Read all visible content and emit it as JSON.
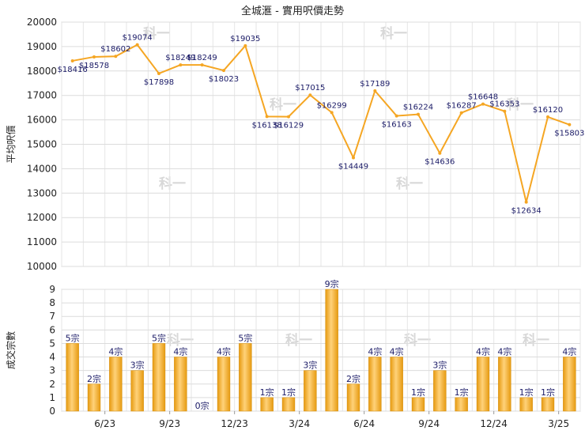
{
  "chart_data": [
    {
      "type": "line",
      "title": "全城滙 - 實用呎價走勢",
      "ylabel": "平均呎價",
      "ylim": [
        10000,
        20000
      ],
      "y_ticks": [
        "10000",
        "11000",
        "12000",
        "13000",
        "14000",
        "15000",
        "16000",
        "17000",
        "18000",
        "19000",
        "20000"
      ],
      "grid": true,
      "line_color": "#f5a623",
      "values": [
        18416,
        18578,
        18602,
        19074,
        17898,
        18249,
        18249,
        18023,
        19035,
        16138,
        16129,
        17015,
        16299,
        14449,
        17189,
        16163,
        16224,
        14636,
        16287,
        16648,
        16353,
        12634,
        16120,
        15803
      ],
      "point_labels": [
        "$18416",
        "$18578",
        "$18602",
        "$19074",
        "$17898",
        "$18249",
        "$18249",
        "$18023",
        "$19035",
        "$16138",
        "$16129",
        "$17015",
        "$16299",
        "$14449",
        "$17189",
        "$16163",
        "$16224",
        "$14636",
        "$16287",
        "$16648",
        "$16353",
        "$12634",
        "$16120",
        "$15803"
      ]
    },
    {
      "type": "bar",
      "ylabel": "成交宗數",
      "ylim": [
        0,
        9
      ],
      "y_ticks": [
        "0",
        "1",
        "2",
        "3",
        "4",
        "5",
        "6",
        "7",
        "8",
        "9"
      ],
      "grid": true,
      "x_ticks": [
        "6/23",
        "9/23",
        "12/23",
        "3/24",
        "6/24",
        "9/24",
        "12/24",
        "3/25"
      ],
      "values": [
        5,
        2,
        4,
        3,
        5,
        4,
        0,
        4,
        5,
        1,
        1,
        3,
        9,
        2,
        4,
        4,
        1,
        3,
        1,
        4,
        4,
        1,
        1,
        4
      ],
      "bar_labels": [
        "5宗",
        "2宗",
        "4宗",
        "3宗",
        "5宗",
        "4宗",
        "0宗",
        "4宗",
        "5宗",
        "1宗",
        "1宗",
        "3宗",
        "9宗",
        "2宗",
        "4宗",
        "4宗",
        "1宗",
        "3宗",
        "1宗",
        "4宗",
        "4宗",
        "1宗",
        "1宗",
        "4宗"
      ],
      "bar_color": "#f5a623"
    }
  ],
  "watermark": "科一"
}
